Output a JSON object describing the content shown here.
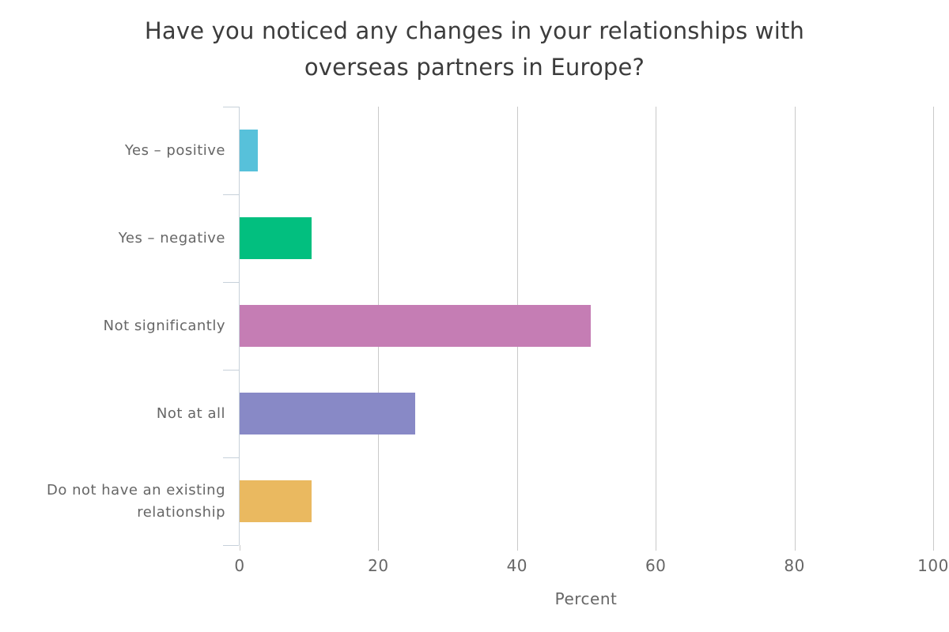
{
  "title": "Have you noticed any changes in your relationships with\noverseas partners in Europe?",
  "chart_data": {
    "type": "bar",
    "orientation": "horizontal",
    "title": "Have you noticed any changes in your relationships with\noverseas partners in Europe?",
    "categories": [
      "Yes – positive",
      "Yes – negative",
      "Not significantly",
      "Not at all",
      "Do not have an existing relationship"
    ],
    "values": [
      2.6,
      10.4,
      50.6,
      25.3,
      10.4
    ],
    "colors": [
      "#57c1da",
      "#02bf7f",
      "#c57db4",
      "#8889c6",
      "#eab960"
    ],
    "xlabel": "Percent",
    "xticks": [
      0,
      20,
      40,
      60,
      80,
      100
    ],
    "xlim": [
      0,
      100
    ],
    "grid": true,
    "legend": "none",
    "axis_color": "#c7d1da",
    "grid_color": "#c9c9c9",
    "text_color": "#666666",
    "title_color": "#3c3c3c"
  }
}
